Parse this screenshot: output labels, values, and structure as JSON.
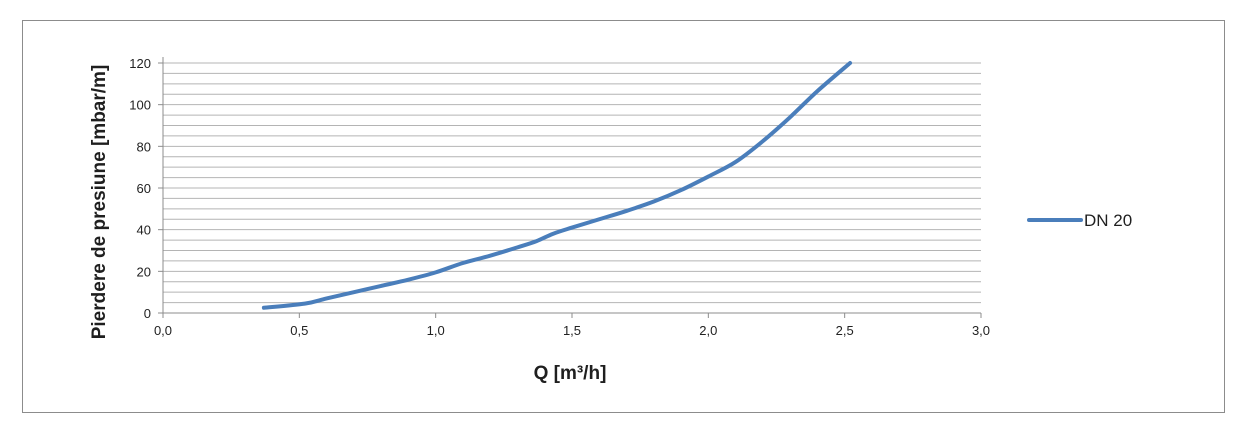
{
  "chart_data": {
    "type": "line",
    "xlabel": "Q [m³/h]",
    "ylabel": "Pierdere de presiune [mbar/m]",
    "xlim": [
      0,
      3
    ],
    "ylim": [
      0,
      120
    ],
    "x_ticks": [
      "0,0",
      "0,5",
      "1,0",
      "1,5",
      "2,0",
      "2,5",
      "3,0"
    ],
    "y_ticks": [
      "0",
      "20",
      "40",
      "60",
      "80",
      "100",
      "120"
    ],
    "minor_grid_step": 5,
    "grid": true,
    "legend_position": "right",
    "series": [
      {
        "name": "DN 20",
        "color": "#4a7ebb",
        "x": [
          0.37,
          0.52,
          0.6,
          0.7,
          0.8,
          0.9,
          1.0,
          1.1,
          1.2,
          1.3,
          1.37,
          1.43,
          1.5,
          1.6,
          1.7,
          1.8,
          1.9,
          2.0,
          2.1,
          2.2,
          2.3,
          2.4,
          2.52
        ],
        "y": [
          2.5,
          4.5,
          7.0,
          10.0,
          13.0,
          16.0,
          19.5,
          24.0,
          27.5,
          31.5,
          34.5,
          38.0,
          41.0,
          45.0,
          49.0,
          53.5,
          59.0,
          65.5,
          72.5,
          82.5,
          94.0,
          106.5,
          120.0
        ]
      }
    ]
  }
}
